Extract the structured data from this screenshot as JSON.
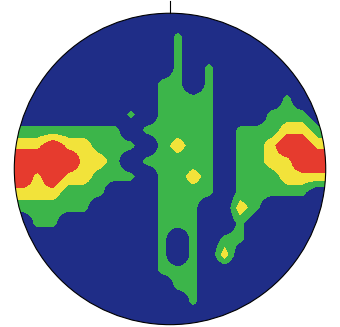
{
  "chart_data": {
    "type": "heatmap",
    "tick_labels": false,
    "colors": [
      "#1f2d87",
      "#3cb54a",
      "#f2e33a",
      "#e63b2e"
    ],
    "color_range": [
      0,
      3
    ],
    "cells": [
      [
        0,
        0,
        0,
        0,
        0,
        0,
        0,
        0,
        0,
        0,
        0,
        0,
        0,
        0,
        0,
        0,
        0,
        0,
        0,
        0
      ],
      [
        0,
        0,
        0,
        0,
        0,
        0,
        0,
        0,
        0,
        0,
        1,
        0,
        0,
        0,
        0,
        0,
        0,
        0,
        0,
        0
      ],
      [
        0,
        0,
        0,
        0,
        0,
        0,
        0,
        0,
        0,
        0,
        1,
        0,
        0,
        0,
        0,
        0,
        0,
        0,
        0,
        0
      ],
      [
        0,
        0,
        0,
        0,
        0,
        0,
        0,
        0,
        0,
        0,
        1,
        0,
        1,
        0,
        0,
        0,
        0,
        0,
        0,
        0
      ],
      [
        0,
        0,
        0,
        0,
        0,
        0,
        0,
        0,
        0,
        1,
        1,
        0,
        1,
        0,
        0,
        0,
        0,
        0,
        0,
        0
      ],
      [
        0,
        0,
        0,
        0,
        0,
        0,
        0,
        0,
        0,
        1,
        1,
        1,
        1,
        0,
        0,
        0,
        0,
        1,
        0,
        0
      ],
      [
        0,
        0,
        0,
        0,
        0,
        0,
        0,
        1,
        0,
        1,
        1,
        1,
        1,
        0,
        0,
        0,
        1,
        1,
        1,
        0
      ],
      [
        1,
        1,
        1,
        1,
        1,
        1,
        1,
        0,
        1,
        1,
        1,
        1,
        1,
        0,
        1,
        1,
        1,
        2,
        2,
        1
      ],
      [
        2,
        2,
        3,
        2,
        2,
        1,
        1,
        1,
        0,
        1,
        2,
        1,
        1,
        0,
        1,
        1,
        2,
        3,
        3,
        2
      ],
      [
        3,
        3,
        3,
        3,
        2,
        2,
        1,
        0,
        1,
        1,
        1,
        1,
        1,
        0,
        1,
        1,
        2,
        2,
        3,
        3
      ],
      [
        3,
        2,
        3,
        2,
        2,
        1,
        1,
        1,
        0,
        1,
        1,
        2,
        1,
        0,
        1,
        1,
        1,
        2,
        2,
        2
      ],
      [
        2,
        2,
        2,
        1,
        1,
        1,
        0,
        0,
        0,
        1,
        1,
        1,
        1,
        0,
        1,
        1,
        1,
        1,
        1,
        0
      ],
      [
        1,
        1,
        1,
        1,
        1,
        0,
        0,
        0,
        0,
        1,
        1,
        1,
        0,
        0,
        2,
        1,
        0,
        0,
        0,
        0
      ],
      [
        0,
        1,
        1,
        0,
        0,
        0,
        0,
        0,
        0,
        1,
        1,
        1,
        0,
        0,
        1,
        0,
        0,
        0,
        0,
        0
      ],
      [
        0,
        0,
        0,
        0,
        0,
        0,
        0,
        0,
        0,
        1,
        0,
        1,
        0,
        1,
        1,
        0,
        0,
        0,
        0,
        0
      ],
      [
        0,
        0,
        0,
        0,
        0,
        0,
        0,
        0,
        0,
        1,
        0,
        1,
        0,
        2,
        0,
        0,
        0,
        0,
        0,
        0
      ],
      [
        0,
        0,
        0,
        0,
        0,
        0,
        0,
        0,
        0,
        1,
        1,
        1,
        0,
        0,
        0,
        0,
        0,
        0,
        0,
        0
      ],
      [
        0,
        0,
        0,
        0,
        0,
        0,
        0,
        0,
        0,
        0,
        1,
        1,
        0,
        0,
        0,
        0,
        0,
        0,
        0,
        0
      ],
      [
        0,
        0,
        0,
        0,
        0,
        0,
        0,
        0,
        0,
        0,
        0,
        1,
        0,
        0,
        0,
        0,
        0,
        0,
        0,
        0
      ],
      [
        0,
        0,
        0,
        0,
        0,
        0,
        0,
        0,
        0,
        0,
        0,
        0,
        0,
        0,
        0,
        0,
        0,
        0,
        0,
        0
      ]
    ]
  }
}
